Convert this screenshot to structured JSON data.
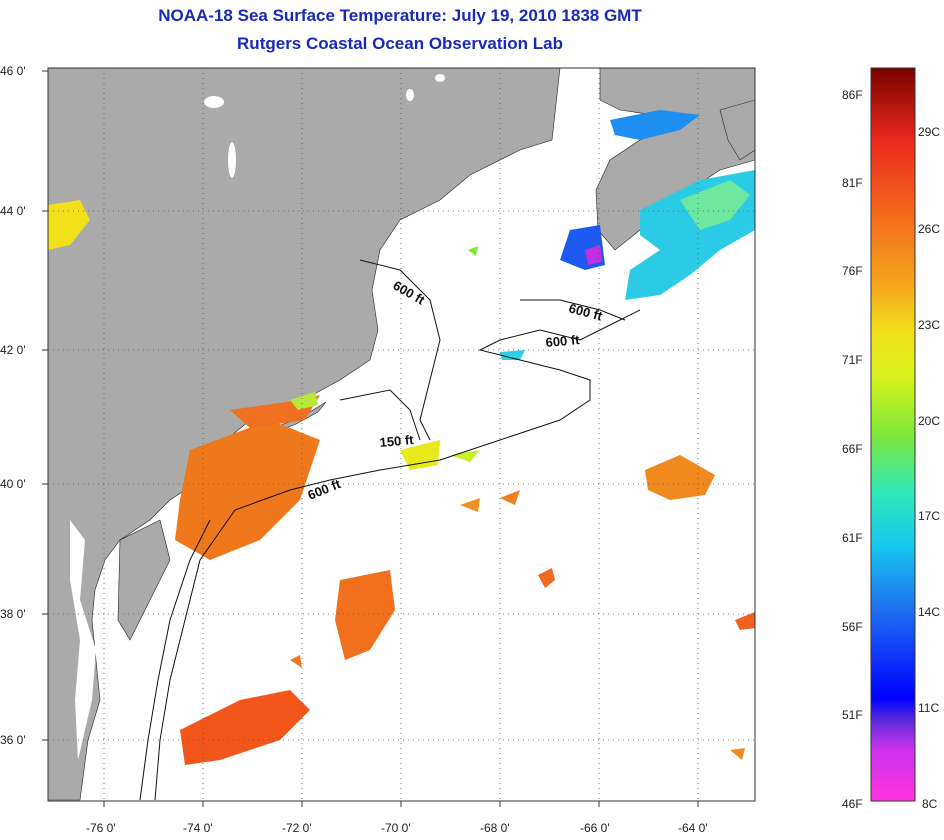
{
  "title": "NOAA-18 Sea Surface Temperature:  July 19, 2010 1838 GMT",
  "subtitle": "Rutgers Coastal Ocean Observation Lab",
  "axes": {
    "lat_labels": [
      "46 0'",
      "44 0'",
      "42 0'",
      "40 0'",
      "38 0'",
      "36 0'"
    ],
    "lon_labels": [
      "-76 0'",
      "-74 0'",
      "-72 0'",
      "-70 0'",
      "-68 0'",
      "-66 0'",
      "-64 0'"
    ]
  },
  "contours": {
    "labels": [
      "600 ft",
      "600 ft",
      "600 ft",
      "150 ft",
      "600 ft"
    ]
  },
  "colorbar": {
    "fahrenheit": [
      "86F",
      "81F",
      "76F",
      "71F",
      "66F",
      "61F",
      "56F",
      "51F",
      "46F"
    ],
    "celsius": [
      "29C",
      "26C",
      "23C",
      "20C",
      "17C",
      "14C",
      "11C",
      "8C"
    ]
  },
  "colors": {
    "land": "#aaaaaa",
    "ocean": "#ffffff",
    "title": "#1a2ab8",
    "warm": "#f07a1e",
    "cool": "#1e9ef0"
  }
}
